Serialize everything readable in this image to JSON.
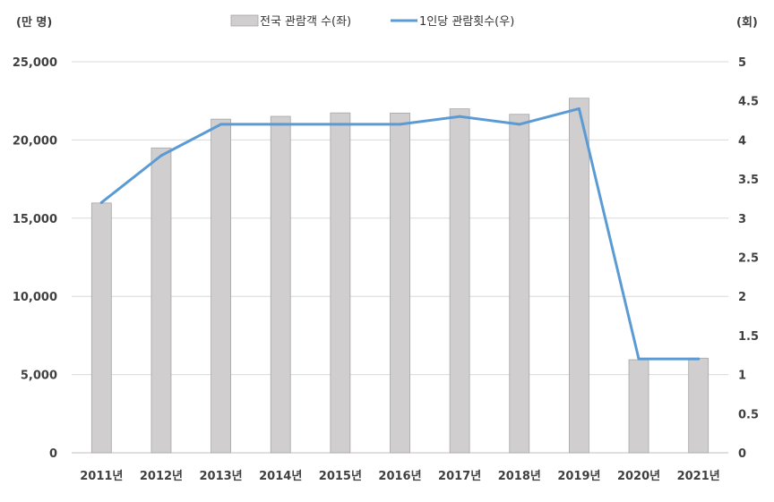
{
  "chart_data": {
    "type": "bar",
    "categories": [
      "2011년",
      "2012년",
      "2013년",
      "2014년",
      "2015년",
      "2016년",
      "2017년",
      "2018년",
      "2019년",
      "2020년",
      "2021년"
    ],
    "series": [
      {
        "name": "전국 관람객 수(좌)",
        "type": "bar",
        "axis": "left",
        "color": "#d0cece",
        "values": [
          15970,
          19490,
          21330,
          21510,
          21730,
          21720,
          21990,
          21640,
          22670,
          5950,
          6050
        ]
      },
      {
        "name": "1인당 관람횟수(우)",
        "type": "line",
        "axis": "right",
        "color": "#5b9bd5",
        "values": [
          3.2,
          3.8,
          4.2,
          4.2,
          4.2,
          4.2,
          4.3,
          4.2,
          4.4,
          1.2,
          1.2
        ]
      }
    ],
    "y_left": {
      "unit_label": "(만 명)",
      "range": [
        0,
        25000
      ],
      "ticks": [
        "0",
        "5,000",
        "10,000",
        "15,000",
        "20,000",
        "25,000"
      ],
      "tick_values": [
        0,
        5000,
        10000,
        15000,
        20000,
        25000
      ]
    },
    "y_right": {
      "unit_label": "(회)",
      "range": [
        0,
        5
      ],
      "ticks": [
        "0",
        "0.5",
        "1",
        "1.5",
        "2",
        "2.5",
        "3",
        "3.5",
        "4",
        "4.5",
        "5"
      ],
      "tick_values": [
        0,
        0.5,
        1,
        1.5,
        2,
        2.5,
        3,
        3.5,
        4,
        4.5,
        5
      ]
    },
    "grid": true,
    "legend": "top-center"
  }
}
